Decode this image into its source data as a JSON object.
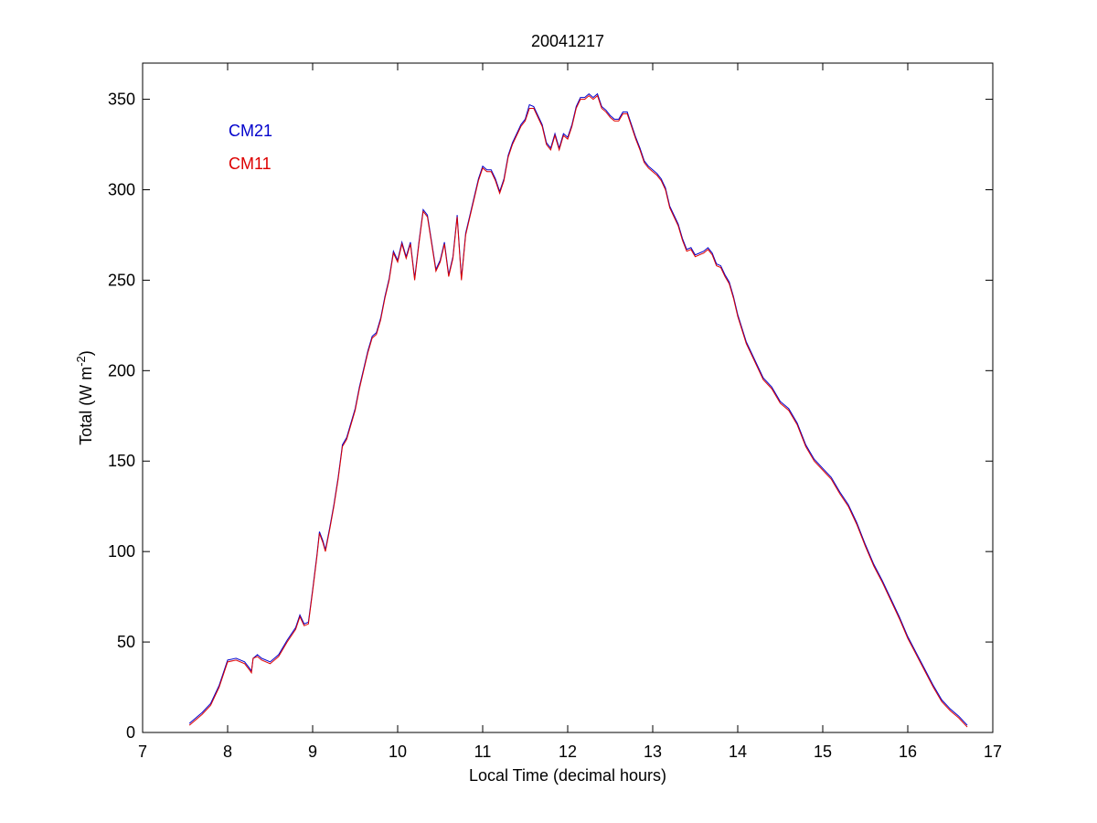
{
  "chart_data": {
    "type": "line",
    "title": "20041217",
    "xlabel": "Local Time (decimal hours)",
    "ylabel": [
      "Total (W m",
      "-2",
      ")"
    ],
    "x": [
      7.55,
      7.7,
      7.8,
      7.9,
      8.0,
      8.1,
      8.2,
      8.25,
      8.28,
      8.3,
      8.35,
      8.4,
      8.5,
      8.6,
      8.7,
      8.8,
      8.85,
      8.9,
      8.95,
      9.0,
      9.05,
      9.08,
      9.12,
      9.15,
      9.2,
      9.25,
      9.3,
      9.35,
      9.4,
      9.45,
      9.5,
      9.55,
      9.6,
      9.65,
      9.7,
      9.75,
      9.8,
      9.85,
      9.9,
      9.95,
      10.0,
      10.05,
      10.1,
      10.15,
      10.2,
      10.25,
      10.3,
      10.35,
      10.4,
      10.45,
      10.5,
      10.55,
      10.6,
      10.65,
      10.7,
      10.75,
      10.8,
      10.85,
      10.9,
      10.95,
      11.0,
      11.05,
      11.1,
      11.15,
      11.2,
      11.25,
      11.3,
      11.35,
      11.4,
      11.45,
      11.5,
      11.55,
      11.6,
      11.65,
      11.7,
      11.75,
      11.8,
      11.85,
      11.9,
      11.95,
      12.0,
      12.05,
      12.1,
      12.15,
      12.2,
      12.25,
      12.3,
      12.35,
      12.4,
      12.45,
      12.5,
      12.55,
      12.6,
      12.65,
      12.7,
      12.75,
      12.8,
      12.85,
      12.9,
      12.95,
      13.0,
      13.05,
      13.1,
      13.15,
      13.2,
      13.25,
      13.3,
      13.35,
      13.4,
      13.45,
      13.5,
      13.55,
      13.6,
      13.65,
      13.7,
      13.75,
      13.8,
      13.85,
      13.9,
      13.95,
      14.0,
      14.1,
      14.2,
      14.3,
      14.4,
      14.5,
      14.6,
      14.7,
      14.8,
      14.9,
      15.0,
      15.1,
      15.2,
      15.3,
      15.4,
      15.5,
      15.6,
      15.7,
      15.8,
      15.9,
      16.0,
      16.1,
      16.2,
      16.3,
      16.4,
      16.5,
      16.6,
      16.7
    ],
    "series": [
      {
        "name": "CM21",
        "color": "#0000cc",
        "values": [
          5,
          11,
          16,
          26,
          40,
          41,
          39,
          36,
          34,
          41,
          43,
          41,
          39,
          43,
          51,
          58,
          65,
          60,
          61,
          79,
          98,
          111,
          106,
          101,
          113,
          126,
          141,
          159,
          163,
          171,
          179,
          191,
          201,
          211,
          219,
          221,
          229,
          241,
          251,
          266,
          261,
          271,
          263,
          271,
          251,
          271,
          289,
          286,
          271,
          256,
          261,
          271,
          253,
          263,
          286,
          251,
          276,
          286,
          296,
          306,
          313,
          311,
          311,
          306,
          299,
          306,
          319,
          326,
          331,
          336,
          339,
          347,
          346,
          341,
          336,
          326,
          323,
          331,
          323,
          331,
          329,
          336,
          346,
          351,
          351,
          353,
          351,
          353,
          346,
          344,
          341,
          339,
          339,
          343,
          343,
          336,
          329,
          323,
          316,
          313,
          311,
          309,
          306,
          301,
          291,
          286,
          281,
          273,
          267,
          268,
          264,
          265,
          266,
          268,
          265,
          259,
          258,
          253,
          249,
          241,
          231,
          216,
          206,
          196,
          191,
          183,
          179,
          171,
          159,
          151,
          146,
          141,
          133,
          126,
          116,
          104,
          93,
          84,
          74,
          64,
          53,
          44,
          35,
          26,
          18,
          13,
          9,
          4
        ]
      },
      {
        "name": "CM11",
        "color": "#dd0000",
        "values": [
          4,
          10,
          15,
          25,
          39,
          40,
          38,
          35,
          33,
          41,
          42,
          40,
          38,
          42,
          50,
          57,
          64,
          59,
          60,
          78,
          97,
          110,
          105,
          100,
          112,
          125,
          140,
          158,
          162,
          170,
          178,
          190,
          200,
          210,
          218,
          220,
          228,
          240,
          250,
          265,
          260,
          270,
          262,
          270,
          250,
          270,
          288,
          285,
          270,
          255,
          260,
          270,
          252,
          262,
          285,
          250,
          275,
          285,
          295,
          305,
          312,
          310,
          310,
          305,
          298,
          305,
          318,
          325,
          330,
          335,
          338,
          345,
          345,
          340,
          335,
          325,
          322,
          330,
          322,
          330,
          328,
          335,
          345,
          350,
          350,
          352,
          350,
          352,
          345,
          343,
          340,
          338,
          338,
          342,
          342,
          335,
          328,
          322,
          315,
          312,
          310,
          308,
          305,
          300,
          290,
          285,
          280,
          272,
          266,
          267,
          263,
          264,
          265,
          267,
          264,
          258,
          257,
          252,
          248,
          240,
          230,
          215,
          205,
          195,
          190,
          182,
          178,
          170,
          158,
          150,
          145,
          140,
          132,
          125,
          115,
          103,
          92,
          83,
          73,
          63,
          52,
          43,
          34,
          25,
          17,
          12,
          8,
          3
        ]
      }
    ],
    "xlim": [
      7,
      17
    ],
    "xticks": [
      7,
      8,
      9,
      10,
      11,
      12,
      13,
      14,
      15,
      16,
      17
    ],
    "ylim": [
      0,
      370
    ],
    "yticks": [
      0,
      50,
      100,
      150,
      200,
      250,
      300,
      350
    ],
    "grid": false,
    "legend": "upper left"
  }
}
